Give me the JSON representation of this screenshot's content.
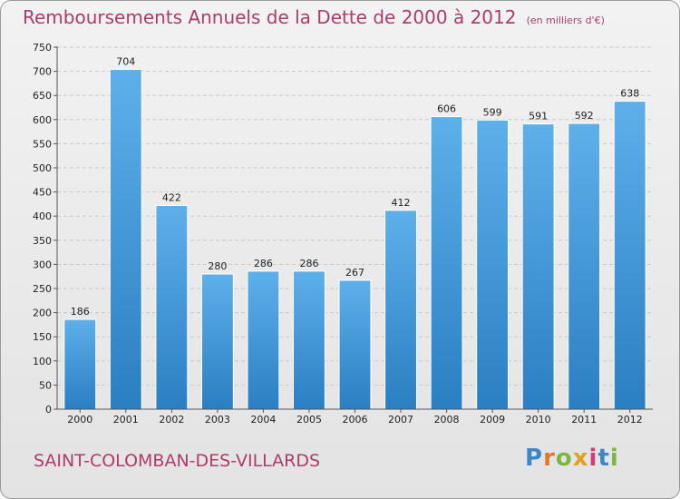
{
  "chart_data": {
    "type": "bar",
    "title": "Remboursements Annuels de la Dette de 2000 à 2012",
    "subtitle": "(en milliers d'€)",
    "xlabel": "",
    "ylabel": "",
    "categories": [
      "2000",
      "2001",
      "2002",
      "2003",
      "2004",
      "2005",
      "2006",
      "2007",
      "2008",
      "2009",
      "2010",
      "2011",
      "2012"
    ],
    "values": [
      186,
      704,
      422,
      280,
      286,
      286,
      267,
      412,
      606,
      599,
      591,
      592,
      638
    ],
    "ylim": [
      0,
      750
    ],
    "yticks": [
      0,
      50,
      100,
      150,
      200,
      250,
      300,
      350,
      400,
      450,
      500,
      550,
      600,
      650,
      700,
      750
    ],
    "grid": true,
    "legend": "none",
    "colors": {
      "bar_light": "#5eb0ea",
      "bar_dark": "#2a7fc3",
      "grid": "#c8c8c8",
      "title": "#b03a6b"
    }
  },
  "footer": {
    "commune": "SAINT-COLOMBAN-DES-VILLARDS"
  },
  "logo": {
    "text": "Proxiti",
    "letter_colors": [
      "#3a88c8",
      "#e07a2b",
      "#7bb642",
      "#e0a020",
      "#d23c7a",
      "#3a88c8",
      "#7bb642"
    ]
  }
}
